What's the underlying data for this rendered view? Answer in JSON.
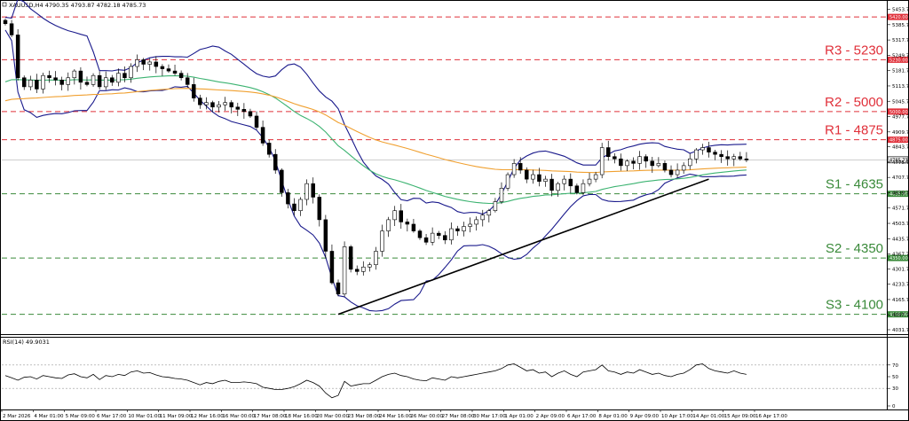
{
  "chart_data": [
    {
      "type": "candlestick",
      "symbol_header": "XAUUSD,H4  4790.35 4793.87 4782.18 4785.73",
      "ylim": [
        4031.7,
        5463.7
      ],
      "y_ticks": [
        "5453.70",
        "5385.70",
        "5317.70",
        "5249.70",
        "5181.70",
        "5113.70",
        "5045.70",
        "4977.70",
        "4909.70",
        "4843.70",
        "4775.70",
        "4707.70",
        "4639.70",
        "4571.70",
        "4503.70",
        "4435.70",
        "4367.70",
        "4301.70",
        "4233.70",
        "4165.70",
        "4097.70",
        "4031.70"
      ],
      "x_labels": [
        "2 Mar 2026",
        "4 Mar 01:00",
        "5 Mar 09:00",
        "6 Mar 17:00",
        "10 Mar 01:00",
        "11 Mar 09:00",
        "12 Mar 16:00",
        "16 Mar 00:00",
        "17 Mar 08:00",
        "18 Mar 16:00",
        "20 Mar 00:00",
        "23 Mar 08:00",
        "24 Mar 16:00",
        "26 Mar 00:00",
        "27 Mar 08:00",
        "30 Mar 17:00",
        "1 Apr 01:00",
        "2 Apr 09:00",
        "6 Apr 17:00",
        "8 Apr 01:00",
        "9 Apr 09:00",
        "10 Apr 17:00",
        "14 Apr 01:00",
        "15 Apr 09:00",
        "16 Apr 17:00"
      ],
      "current_price": 4785.73,
      "current_price_label": "4785.73",
      "levels": [
        {
          "name": "R3",
          "label": "R3 - 5230",
          "price": 5230,
          "box": "5230.00",
          "color": "#e0303a"
        },
        {
          "name": "R2",
          "label": "R2 - 5000",
          "price": 5000,
          "box": "5000.00",
          "color": "#e0303a"
        },
        {
          "name": "R1",
          "label": "R1 - 4875",
          "price": 4875,
          "box": "4875.00",
          "color": "#e0303a"
        },
        {
          "name": "S1",
          "label": "S1 - 4635",
          "price": 4635,
          "box": "4635.00",
          "color": "#3a8a3a"
        },
        {
          "name": "S2",
          "label": "S2 - 4350",
          "price": 4350,
          "box": "4350.00",
          "color": "#3a8a3a"
        },
        {
          "name": "S3",
          "label": "S3 - 4100",
          "price": 4100,
          "box": "4100.00",
          "color": "#3a8a3a"
        }
      ],
      "top_line": {
        "price": 5420,
        "box": "5420.00"
      },
      "close_series": [
        5390,
        5340,
        5150,
        5110,
        5140,
        5100,
        5160,
        5150,
        5140,
        5120,
        5150,
        5180,
        5130,
        5120,
        5160,
        5110,
        5150,
        5130,
        5170,
        5150,
        5200,
        5230,
        5210,
        5220,
        5200,
        5190,
        5180,
        5170,
        5150,
        5120,
        5060,
        5030,
        5040,
        5020,
        5030,
        5040,
        5020,
        5010,
        5000,
        4980,
        4930,
        4860,
        4810,
        4740,
        4640,
        4590,
        4560,
        4610,
        4680,
        4620,
        4520,
        4380,
        4240,
        4190,
        4400,
        4300,
        4290,
        4310,
        4320,
        4380,
        4470,
        4520,
        4560,
        4510,
        4500,
        4470,
        4440,
        4420,
        4460,
        4450,
        4430,
        4480,
        4470,
        4490,
        4500,
        4520,
        4540,
        4560,
        4600,
        4660,
        4720,
        4770,
        4740,
        4700,
        4720,
        4690,
        4700,
        4650,
        4680,
        4700,
        4670,
        4640,
        4680,
        4700,
        4720,
        4840,
        4800,
        4790,
        4760,
        4780,
        4770,
        4800,
        4780,
        4760,
        4770,
        4740,
        4720,
        4740,
        4760,
        4790,
        4830,
        4840,
        4820,
        4810,
        4800,
        4790,
        4800,
        4790,
        4785
      ],
      "indicators": [
        "Bollinger Bands (upper / middle / lower)",
        "SMA 100",
        "SMA 200"
      ],
      "trendline": {
        "from": [
          53,
          4100
        ],
        "to": [
          112,
          4700
        ]
      }
    },
    {
      "type": "line",
      "header": "RSI(14) 49.9031",
      "ylim": [
        0,
        100
      ],
      "y_ticks": [
        "70",
        "50",
        "30",
        "0"
      ],
      "guide_levels": [
        70,
        30
      ],
      "values": [
        52,
        48,
        44,
        49,
        50,
        46,
        52,
        50,
        48,
        47,
        53,
        55,
        50,
        48,
        54,
        45,
        52,
        50,
        54,
        52,
        58,
        60,
        56,
        57,
        53,
        50,
        49,
        47,
        46,
        44,
        40,
        36,
        40,
        38,
        42,
        44,
        40,
        40,
        41,
        40,
        38,
        32,
        30,
        28,
        28,
        30,
        33,
        38,
        44,
        40,
        34,
        22,
        14,
        18,
        42,
        34,
        36,
        38,
        38,
        44,
        50,
        54,
        56,
        52,
        50,
        46,
        44,
        43,
        48,
        46,
        44,
        50,
        48,
        50,
        52,
        54,
        56,
        58,
        60,
        64,
        70,
        72,
        66,
        60,
        62,
        56,
        58,
        50,
        56,
        60,
        54,
        50,
        58,
        60,
        62,
        70,
        60,
        58,
        54,
        58,
        56,
        62,
        58,
        54,
        56,
        52,
        50,
        54,
        56,
        62,
        70,
        72,
        64,
        60,
        58,
        56,
        60,
        56,
        54
      ]
    }
  ]
}
